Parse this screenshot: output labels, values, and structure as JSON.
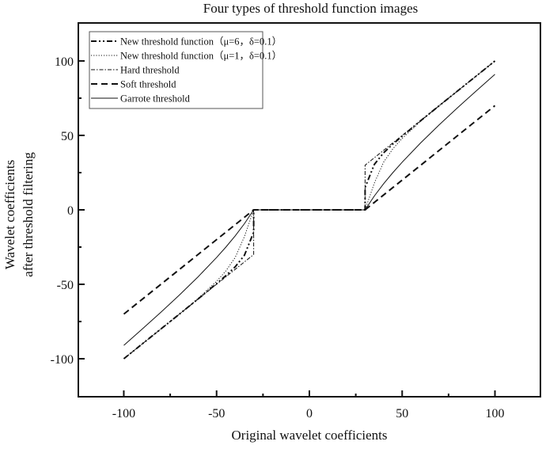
{
  "chart_data": {
    "type": "line",
    "title": "Four types of threshold function images",
    "xlabel": "Original wavelet coefficients",
    "ylabel": [
      "Wavelet coefficients",
      "after threshold filtering"
    ],
    "xlim": [
      -124.5,
      124.5
    ],
    "ylim": [
      -125.5,
      125.5
    ],
    "xticks": [
      -100,
      -50,
      0,
      50,
      100
    ],
    "yticks": [
      -100,
      -50,
      0,
      50,
      100
    ],
    "minor_xticks": [
      -75,
      -25,
      25,
      75
    ],
    "minor_yticks": [
      -75,
      -25,
      25,
      75
    ],
    "grid": false,
    "legend_position": "upper left",
    "threshold": 30,
    "series": [
      {
        "name": "New threshold function（μ=6，δ=0.1）",
        "style": "dash-dot-dot",
        "x": [
          -100,
          -90,
          -80,
          -70,
          -60,
          -50,
          -45,
          -40,
          -35,
          -30.01,
          -30,
          30,
          30.01,
          35,
          40,
          45,
          50,
          60,
          70,
          80,
          90,
          100
        ],
        "y": [
          -100,
          -90,
          -80,
          -70,
          -59.9,
          -49.5,
          -44.2,
          -38.3,
          -30.5,
          -15,
          0,
          0,
          15,
          30.5,
          38.3,
          44.2,
          49.5,
          59.9,
          70,
          80,
          90,
          100
        ]
      },
      {
        "name": "New threshold function（μ=1，δ=0.1）",
        "style": "dotted",
        "x": [
          -100,
          -90,
          -80,
          -70,
          -60,
          -50,
          -45,
          -40,
          -35,
          -30,
          30,
          35,
          40,
          45,
          50,
          60,
          70,
          80,
          90,
          100
        ],
        "y": [
          -100,
          -90,
          -80,
          -70,
          -59.5,
          -48,
          -41,
          -32,
          -18,
          0,
          0,
          18,
          32,
          41,
          48,
          59.5,
          70,
          80,
          90,
          100
        ]
      },
      {
        "name": "Hard threshold",
        "style": "dash-dot",
        "x": [
          -100,
          -30,
          -30,
          30,
          30,
          100
        ],
        "y": [
          -100,
          -30,
          0,
          0,
          30,
          100
        ]
      },
      {
        "name": "Soft threshold",
        "style": "dashed",
        "x": [
          -100,
          -30,
          30,
          100
        ],
        "y": [
          -70,
          0,
          0,
          70
        ]
      },
      {
        "name": "Garrote threshold",
        "style": "solid",
        "x": [
          -100,
          -90,
          -80,
          -70,
          -60,
          -50,
          -45,
          -40,
          -35,
          -30,
          30,
          35,
          40,
          45,
          50,
          60,
          70,
          80,
          90,
          100
        ],
        "y": [
          -91,
          -80,
          -68.75,
          -57.14,
          -45,
          -32,
          -25,
          -17.5,
          -9.29,
          0,
          0,
          9.29,
          17.5,
          25,
          32,
          45,
          57.14,
          68.75,
          80,
          91
        ]
      }
    ]
  }
}
